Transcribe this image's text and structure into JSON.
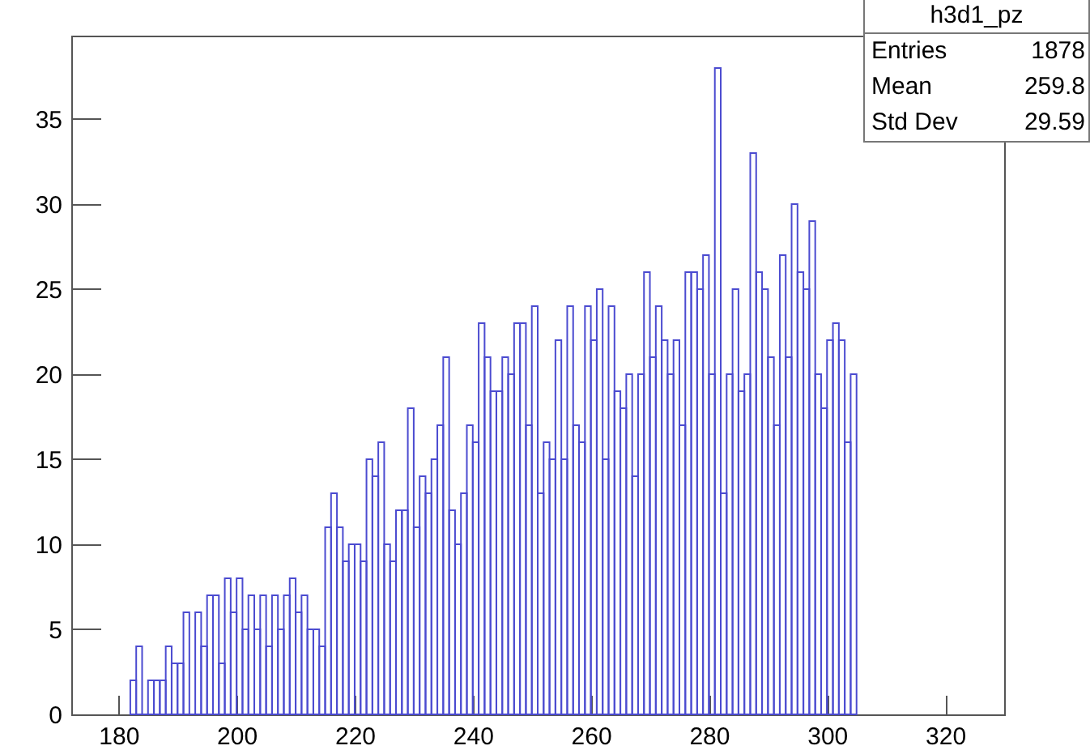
{
  "chart_data": {
    "type": "histogram",
    "bins": [
      182,
      183,
      184,
      185,
      186,
      187,
      188,
      189,
      190,
      191,
      192,
      193,
      194,
      195,
      196,
      197,
      198,
      199,
      200,
      201,
      202,
      203,
      204,
      205,
      206,
      207,
      208,
      209,
      210,
      211,
      212,
      213,
      214,
      215,
      216,
      217,
      218,
      219,
      220,
      221,
      222,
      223,
      224,
      225,
      226,
      227,
      228,
      229,
      230,
      231,
      232,
      233,
      234,
      235,
      236,
      237,
      238,
      239,
      240,
      241,
      242,
      243,
      244,
      245,
      246,
      247,
      248,
      249,
      250,
      251,
      252,
      253,
      254,
      255,
      256,
      257,
      258,
      259,
      260,
      261,
      262,
      263,
      264,
      265,
      266,
      267,
      268,
      269,
      270,
      271,
      272,
      273,
      274,
      275,
      276,
      277,
      278,
      279,
      280,
      281,
      282,
      283,
      284,
      285,
      286,
      287,
      288,
      289,
      290,
      291,
      292,
      293,
      294,
      295,
      296,
      297,
      298,
      299,
      300,
      301,
      302,
      303,
      304,
      305
    ],
    "values": [
      2,
      4,
      0,
      2,
      2,
      2,
      4,
      3,
      3,
      6,
      0,
      6,
      4,
      7,
      7,
      3,
      8,
      6,
      8,
      5,
      7,
      5,
      7,
      4,
      7,
      5,
      7,
      8,
      6,
      7,
      5,
      5,
      4,
      11,
      13,
      11,
      9,
      10,
      10,
      9,
      15,
      14,
      16,
      10,
      9,
      12,
      12,
      18,
      11,
      14,
      13,
      15,
      17,
      21,
      12,
      10,
      13,
      17,
      16,
      23,
      21,
      19,
      19,
      21,
      20,
      23,
      23,
      17,
      24,
      13,
      16,
      15,
      22,
      15,
      24,
      17,
      16,
      24,
      22,
      25,
      15,
      24,
      19,
      18,
      20,
      14,
      20,
      26,
      21,
      24,
      22,
      20,
      22,
      17,
      26,
      26,
      25,
      27,
      20,
      38,
      13,
      20,
      25,
      19,
      20,
      33,
      26,
      25,
      21,
      17,
      27,
      21,
      30,
      26,
      25,
      29,
      20,
      18,
      22,
      23,
      22,
      16,
      20
    ],
    "color": "#4b4bd0",
    "xlim": [
      172,
      330
    ],
    "xticks": [
      180,
      200,
      220,
      240,
      260,
      280,
      300,
      320
    ],
    "ylim": [
      0,
      39.9
    ],
    "yticks": [
      0,
      5,
      10,
      15,
      20,
      25,
      30,
      35
    ],
    "grid": false,
    "annotations": [
      "h3d1_pz",
      "Entries",
      "1878",
      "Mean",
      "259.8",
      "Std Dev",
      "29.59"
    ]
  }
}
